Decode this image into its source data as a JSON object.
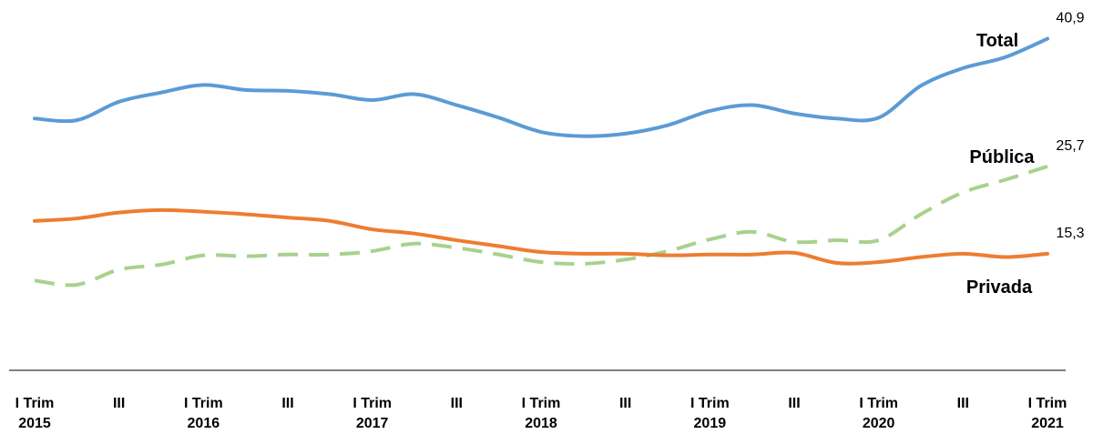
{
  "chart_data": {
    "type": "line",
    "categories": [
      "I Trim\n2015",
      null,
      "III",
      null,
      "I Trim\n2016",
      null,
      "III",
      null,
      "I Trim\n2017",
      null,
      "III",
      null,
      "I Trim\n2018",
      null,
      "III",
      null,
      "I Trim\n2019",
      null,
      "III",
      null,
      "I Trim\n2020",
      null,
      "III",
      null,
      "I Trim\n2021"
    ],
    "ylim": [
      0,
      44
    ],
    "series": [
      {
        "name": "Total",
        "color": "#5b9bd5",
        "dashed": false,
        "values": [
          31.4,
          31.2,
          33.4,
          34.5,
          35.4,
          34.8,
          34.7,
          34.3,
          33.6,
          34.3,
          33.0,
          31.5,
          29.8,
          29.3,
          29.6,
          30.6,
          32.3,
          33.0,
          32.0,
          31.4,
          31.5,
          35.3,
          37.4,
          38.7,
          40.9
        ],
        "value_labels": [
          null,
          null,
          null,
          null,
          null,
          null,
          null,
          null,
          null,
          null,
          null,
          null,
          null,
          null,
          null,
          null,
          null,
          null,
          null,
          null,
          null,
          null,
          null,
          null,
          "40,9"
        ]
      },
      {
        "name": "Pública",
        "color": "#a9d18e",
        "dashed": true,
        "values": [
          12.1,
          11.6,
          13.4,
          14.0,
          15.1,
          15.0,
          15.2,
          15.2,
          15.6,
          16.5,
          16.0,
          15.2,
          14.3,
          14.1,
          14.6,
          15.6,
          17.0,
          17.9,
          16.7,
          16.9,
          16.9,
          20.0,
          22.6,
          24.1,
          25.7
        ],
        "value_labels": [
          null,
          null,
          null,
          null,
          null,
          null,
          null,
          null,
          null,
          null,
          null,
          null,
          null,
          null,
          null,
          null,
          null,
          null,
          null,
          null,
          null,
          null,
          null,
          null,
          "25,7"
        ]
      },
      {
        "name": "Privada",
        "color": "#ed7d31",
        "dashed": false,
        "values": [
          19.2,
          19.5,
          20.2,
          20.5,
          20.3,
          20.0,
          19.6,
          19.2,
          18.2,
          17.7,
          16.9,
          16.2,
          15.5,
          15.3,
          15.3,
          15.1,
          15.2,
          15.2,
          15.4,
          14.2,
          14.3,
          14.9,
          15.3,
          14.9,
          15.3
        ],
        "value_labels": [
          null,
          null,
          null,
          null,
          null,
          null,
          null,
          null,
          null,
          null,
          null,
          null,
          null,
          null,
          null,
          null,
          null,
          null,
          null,
          null,
          null,
          null,
          null,
          null,
          "15,3"
        ]
      }
    ]
  }
}
